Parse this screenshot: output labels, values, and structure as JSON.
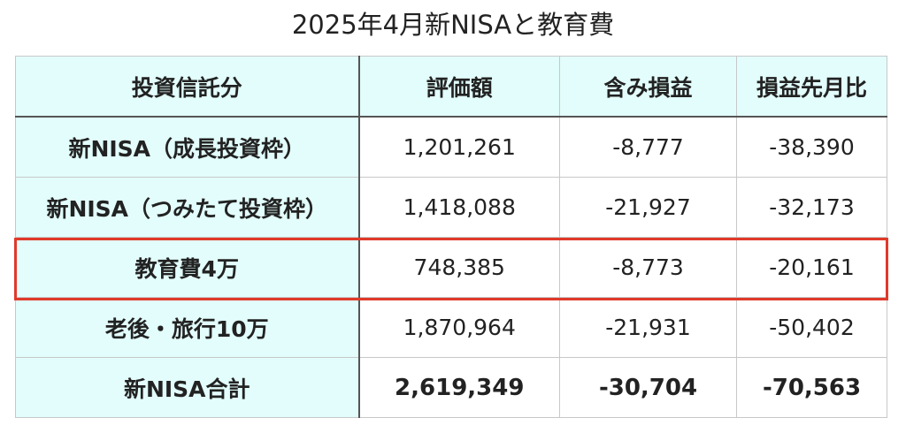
{
  "title": "2025年4月新NISAと教育費",
  "table": {
    "headers": [
      "投資信託分",
      "評価額",
      "含み損益",
      "損益先月比"
    ],
    "rows": [
      {
        "label": "新NISA（成長投資枠）",
        "values": [
          "1,201,261",
          "-8,777",
          "-38,390"
        ]
      },
      {
        "label": "新NISA（つみたて投資枠）",
        "values": [
          "1,418,088",
          "-21,927",
          "-32,173"
        ]
      },
      {
        "label": "教育費4万",
        "values": [
          "748,385",
          "-8,773",
          "-20,161"
        ]
      },
      {
        "label": "老後・旅行10万",
        "values": [
          "1,870,964",
          "-21,931",
          "-50,402"
        ]
      },
      {
        "label": "新NISA合計",
        "values": [
          "2,619,349",
          "-30,704",
          "-70,563"
        ]
      }
    ]
  },
  "colors": {
    "header_bg": "#e2fdfb",
    "highlight_border": "#e03a2a"
  }
}
